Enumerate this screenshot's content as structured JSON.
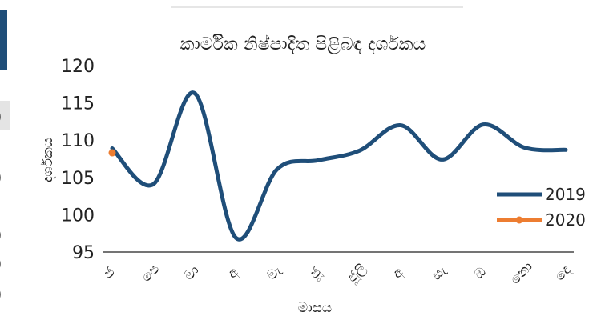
{
  "chart_data": {
    "type": "line",
    "title": "කාර්මික නිෂ්පාදිත පිළිබඳ දර්ශකය",
    "xlabel": "මාසය",
    "ylabel": "දර්ශකය",
    "categories": [
      "ජ",
      "පෙ",
      "මා",
      "අ",
      "මැ",
      "ජූ",
      "ජූලි",
      "අ",
      "සැ",
      "ඔ",
      "නො",
      "දෙ"
    ],
    "ylim": [
      95,
      120
    ],
    "yticks": [
      95,
      100,
      105,
      110,
      115,
      120
    ],
    "grid": false,
    "legend": "right",
    "series": [
      {
        "name": "2019",
        "color": "#1f4e79",
        "values": [
          108.9,
          104.1,
          116.3,
          96.9,
          106.1,
          107.3,
          108.6,
          112.0,
          107.4,
          112.1,
          109.0,
          108.7
        ]
      },
      {
        "name": "2020",
        "color": "#ed7d31",
        "values": [
          108.3,
          null,
          null,
          null,
          null,
          null,
          null,
          null,
          null,
          null,
          null,
          null
        ]
      }
    ]
  }
}
